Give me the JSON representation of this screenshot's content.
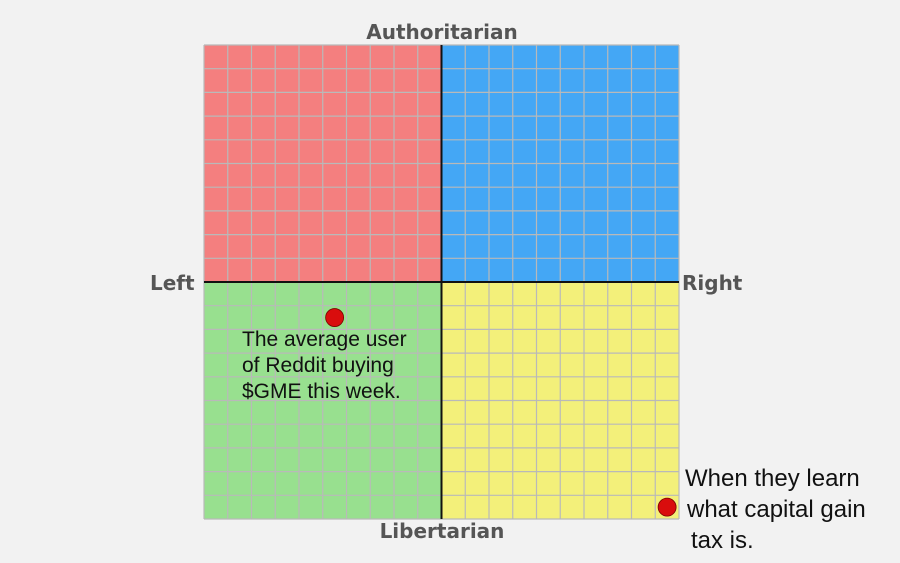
{
  "axes": {
    "top": "Authoritarian",
    "bottom": "Libertarian",
    "left": "Left",
    "right": "Right"
  },
  "quadrants": {
    "top_left": {
      "name": "authoritarian-left",
      "color": "#f47f7f"
    },
    "top_right": {
      "name": "authoritarian-right",
      "color": "#44a7f5"
    },
    "bottom_left": {
      "name": "libertarian-left",
      "color": "#98e08f"
    },
    "bottom_right": {
      "name": "libertarian-right",
      "color": "#f3f07a"
    }
  },
  "colors": {
    "grid_line": "#b9b9b9",
    "axis_line": "#111111",
    "point": "#d90d0d",
    "label": "#555555"
  },
  "points": [
    {
      "x": -4.5,
      "y": -1.5,
      "lines": [
        "The average user",
        "of Reddit buying",
        "$GME this week."
      ]
    },
    {
      "x": 9.5,
      "y": -9.5,
      "lines": [
        "When they learn",
        "what capital gain",
        "tax is."
      ]
    }
  ]
}
